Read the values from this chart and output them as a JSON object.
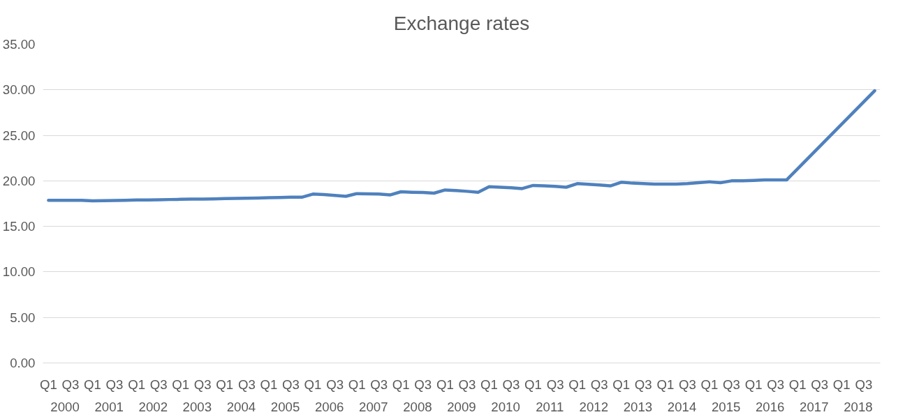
{
  "chart_data": {
    "type": "line",
    "title": "Exchange rates",
    "categories": [
      "Q1",
      null,
      "Q3",
      null,
      "Q1",
      null,
      "Q3",
      null,
      "Q1",
      null,
      "Q3",
      null,
      "Q1",
      null,
      "Q3",
      null,
      "Q1",
      null,
      "Q3",
      null,
      "Q1",
      null,
      "Q3",
      null,
      "Q1",
      null,
      "Q3",
      null,
      "Q1",
      null,
      "Q3",
      null,
      "Q1",
      null,
      "Q3",
      null,
      "Q1",
      null,
      "Q3",
      null,
      "Q1",
      null,
      "Q3",
      null,
      "Q1",
      null,
      "Q3",
      null,
      "Q1",
      null,
      "Q3",
      null,
      "Q1",
      null,
      "Q3",
      null,
      "Q1",
      null,
      "Q3",
      null,
      "Q1",
      null,
      "Q3",
      null,
      "Q1",
      null,
      "Q3",
      null,
      "Q1",
      null,
      "Q3",
      null,
      "Q1",
      null,
      "Q3",
      null
    ],
    "series": [
      {
        "color": "#4f81bd",
        "values": [
          17.87,
          17.87,
          17.87,
          17.87,
          17.8,
          17.82,
          17.85,
          17.87,
          17.9,
          17.9,
          17.92,
          17.95,
          17.97,
          18.0,
          18.0,
          18.02,
          18.05,
          18.07,
          18.1,
          18.12,
          18.15,
          18.17,
          18.2,
          18.2,
          18.55,
          18.5,
          18.4,
          18.3,
          18.6,
          18.58,
          18.55,
          18.45,
          18.8,
          18.75,
          18.72,
          18.65,
          19.0,
          18.93,
          18.85,
          18.75,
          19.35,
          19.3,
          19.25,
          19.15,
          19.5,
          19.45,
          19.4,
          19.3,
          19.7,
          19.62,
          19.55,
          19.45,
          19.85,
          19.75,
          19.7,
          19.65,
          19.65,
          19.65,
          19.7,
          19.8,
          19.9,
          19.8,
          20.0,
          20.0,
          20.05,
          20.1,
          20.1,
          20.1,
          21.32,
          22.55,
          23.77,
          25.0,
          26.22,
          27.45,
          28.67,
          29.9
        ]
      }
    ],
    "ylim": [
      0,
      35
    ],
    "yticks": [
      {
        "value": 0,
        "label": "0.00"
      },
      {
        "value": 5,
        "label": "5.00"
      },
      {
        "value": 10,
        "label": "10.00"
      },
      {
        "value": 15,
        "label": "15.00"
      },
      {
        "value": 20,
        "label": "20.00"
      },
      {
        "value": 25,
        "label": "25.00"
      },
      {
        "value": 30,
        "label": "30.00"
      },
      {
        "value": 35,
        "label": "35.00"
      }
    ],
    "grid": "y",
    "marker": "none",
    "line_style": "solid",
    "annotations": [
      "2000",
      "2001",
      "2002",
      "2003",
      "2004",
      "2005",
      "2006",
      "2007",
      "2008",
      "2009",
      "2010",
      "2011",
      "2012",
      "2013",
      "2014",
      "2015",
      "2016",
      "2017",
      "2018"
    ]
  }
}
